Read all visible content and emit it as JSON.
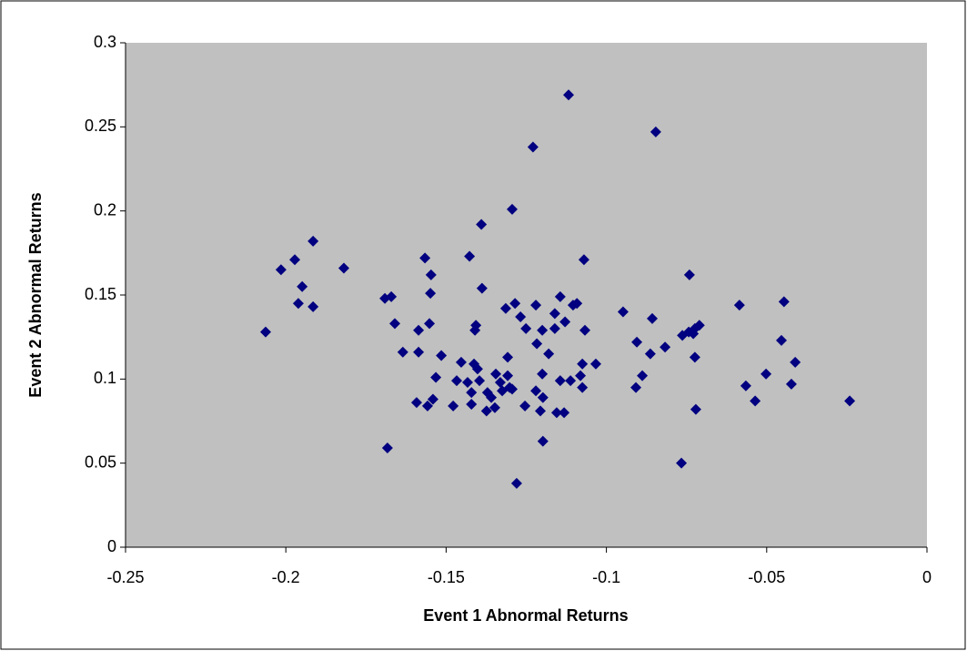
{
  "chart_data": {
    "type": "scatter",
    "x_label": "Event 1 Abnormal Returns",
    "y_label": "Event 2 Abnormal Returns",
    "color": "#000080",
    "x": [
      -0.2063,
      -0.2015,
      -0.1972,
      -0.1961,
      -0.1949,
      -0.1915,
      -0.1915,
      -0.1819,
      -0.1691,
      -0.1671,
      -0.1683,
      -0.166,
      -0.1635,
      -0.1586,
      -0.1586,
      -0.1592,
      -0.1566,
      -0.1552,
      -0.1547,
      -0.1549,
      -0.1541,
      -0.1532,
      -0.1515,
      -0.1558,
      -0.1467,
      -0.1453,
      -0.1478,
      -0.1427,
      -0.1433,
      -0.1421,
      -0.1421,
      -0.1413,
      -0.1407,
      -0.141,
      -0.1402,
      -0.1396,
      -0.139,
      -0.1388,
      -0.1371,
      -0.1374,
      -0.1359,
      -0.1348,
      -0.1345,
      -0.1331,
      -0.1325,
      -0.1314,
      -0.1308,
      -0.1308,
      -0.1302,
      -0.1294,
      -0.1294,
      -0.1285,
      -0.128,
      -0.1268,
      -0.1254,
      -0.1251,
      -0.1229,
      -0.122,
      -0.1217,
      -0.122,
      -0.1206,
      -0.12,
      -0.12,
      -0.1198,
      -0.1198,
      -0.118,
      -0.1161,
      -0.1161,
      -0.1155,
      -0.1144,
      -0.1144,
      -0.1132,
      -0.1129,
      -0.1118,
      -0.1112,
      -0.1104,
      -0.1092,
      -0.1081,
      -0.1075,
      -0.107,
      -0.1067,
      -0.1075,
      -0.1033,
      -0.0948,
      -0.0908,
      -0.0905,
      -0.0888,
      -0.0863,
      -0.0857,
      -0.0846,
      -0.0817,
      -0.0766,
      -0.0763,
      -0.0743,
      -0.0741,
      -0.0729,
      -0.0724,
      -0.0724,
      -0.0721,
      -0.071,
      -0.0585,
      -0.0565,
      -0.0536,
      -0.0502,
      -0.0454,
      -0.0446,
      -0.0423,
      -0.0411,
      -0.0241
    ],
    "values": [
      0.128,
      0.165,
      0.171,
      0.145,
      0.155,
      0.182,
      0.143,
      0.166,
      0.148,
      0.149,
      0.059,
      0.133,
      0.116,
      0.129,
      0.116,
      0.086,
      0.172,
      0.133,
      0.162,
      0.151,
      0.088,
      0.101,
      0.114,
      0.084,
      0.099,
      0.11,
      0.084,
      0.173,
      0.098,
      0.092,
      0.085,
      0.109,
      0.132,
      0.129,
      0.106,
      0.099,
      0.192,
      0.154,
      0.092,
      0.081,
      0.089,
      0.083,
      0.103,
      0.098,
      0.093,
      0.142,
      0.113,
      0.102,
      0.095,
      0.094,
      0.201,
      0.145,
      0.038,
      0.137,
      0.084,
      0.13,
      0.238,
      0.144,
      0.121,
      0.093,
      0.081,
      0.129,
      0.103,
      0.089,
      0.063,
      0.115,
      0.13,
      0.139,
      0.08,
      0.099,
      0.149,
      0.08,
      0.134,
      0.269,
      0.099,
      0.144,
      0.145,
      0.102,
      0.095,
      0.171,
      0.129,
      0.109,
      0.109,
      0.14,
      0.095,
      0.122,
      0.102,
      0.115,
      0.136,
      0.247,
      0.119,
      0.05,
      0.126,
      0.128,
      0.162,
      0.127,
      0.13,
      0.113,
      0.082,
      0.132,
      0.144,
      0.096,
      0.087,
      0.103,
      0.123,
      0.146,
      0.097,
      0.11,
      0.087
    ],
    "xlim": [
      -0.25,
      0
    ],
    "xticks": [
      -0.25,
      -0.2,
      -0.15,
      -0.1,
      -0.05,
      0
    ],
    "ylim": [
      0,
      0.3
    ],
    "yticks": [
      0,
      0.05,
      0.1,
      0.15,
      0.2,
      0.25,
      0.3
    ]
  }
}
